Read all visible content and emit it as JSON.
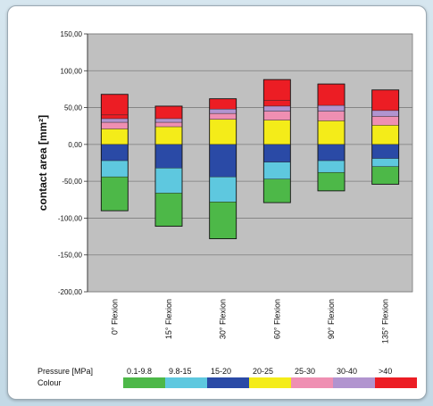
{
  "chart_data": {
    "type": "bar",
    "stacked": true,
    "ylabel": "contact area [mm²]",
    "ylim": [
      -200,
      150
    ],
    "yticks": [
      "150,00",
      "100,00",
      "50,00",
      "0,00",
      "-50,00",
      "-100,00",
      "-150,00",
      "-200,00"
    ],
    "ytick_values": [
      150,
      100,
      50,
      0,
      -50,
      -100,
      -150,
      -200
    ],
    "categories": [
      "0° Flexion",
      "15° Flexion",
      "30° Flexion",
      "60° Flexion",
      "90° Flexion",
      "135° Flexion"
    ],
    "grid": true,
    "bars": [
      [
        [
          -90,
          -44,
          "green"
        ],
        [
          -44,
          -22,
          "cyan"
        ],
        [
          -22,
          0,
          "blue"
        ],
        [
          0,
          21,
          "yellow"
        ],
        [
          21,
          30,
          "pink"
        ],
        [
          30,
          35,
          "purple"
        ],
        [
          35,
          40,
          "red"
        ],
        [
          40,
          68,
          "red"
        ]
      ],
      [
        [
          -111,
          -66,
          "green"
        ],
        [
          -66,
          -32,
          "cyan"
        ],
        [
          -32,
          0,
          "blue"
        ],
        [
          0,
          24,
          "yellow"
        ],
        [
          24,
          30,
          "pink"
        ],
        [
          30,
          35,
          "purple"
        ],
        [
          35,
          52,
          "red"
        ]
      ],
      [
        [
          -128,
          -78,
          "green"
        ],
        [
          -78,
          -44,
          "cyan"
        ],
        [
          -44,
          0,
          "blue"
        ],
        [
          0,
          34,
          "yellow"
        ],
        [
          34,
          42,
          "pink"
        ],
        [
          42,
          48,
          "purple"
        ],
        [
          48,
          62,
          "red"
        ]
      ],
      [
        [
          -79,
          -47,
          "green"
        ],
        [
          -47,
          -24,
          "cyan"
        ],
        [
          -24,
          0,
          "blue"
        ],
        [
          0,
          33,
          "yellow"
        ],
        [
          33,
          45,
          "pink"
        ],
        [
          45,
          52,
          "purple"
        ],
        [
          52,
          60,
          "red"
        ],
        [
          60,
          88,
          "red"
        ]
      ],
      [
        [
          -63,
          -38,
          "green"
        ],
        [
          -38,
          -22,
          "cyan"
        ],
        [
          -22,
          0,
          "blue"
        ],
        [
          0,
          32,
          "yellow"
        ],
        [
          32,
          45,
          "pink"
        ],
        [
          45,
          53,
          "purple"
        ],
        [
          53,
          82,
          "red"
        ]
      ],
      [
        [
          -54,
          -30,
          "green"
        ],
        [
          -30,
          -19,
          "cyan"
        ],
        [
          -19,
          0,
          "blue"
        ],
        [
          0,
          26,
          "yellow"
        ],
        [
          26,
          38,
          "pink"
        ],
        [
          38,
          46,
          "purple"
        ],
        [
          46,
          74,
          "red"
        ]
      ]
    ],
    "legend": {
      "pressure_label": "Pressure [MPa]",
      "colour_label": "Colour",
      "items": [
        {
          "label": "0.1-9.8",
          "color": "green"
        },
        {
          "label": "9.8-15",
          "color": "cyan"
        },
        {
          "label": "15-20",
          "color": "blue"
        },
        {
          "label": "20-25",
          "color": "yellow"
        },
        {
          "label": "25-30",
          "color": "pink"
        },
        {
          "label": "30-40",
          "color": "purple"
        },
        {
          "label": ">40",
          "color": "red"
        }
      ]
    },
    "colors": {
      "green": "#4db848",
      "cyan": "#5ec8df",
      "blue": "#2a4aa6",
      "yellow": "#f4ec19",
      "pink": "#ef8fb2",
      "purple": "#b194cf",
      "red": "#ec1d24",
      "plot_bg": "#c0c0c0"
    }
  }
}
